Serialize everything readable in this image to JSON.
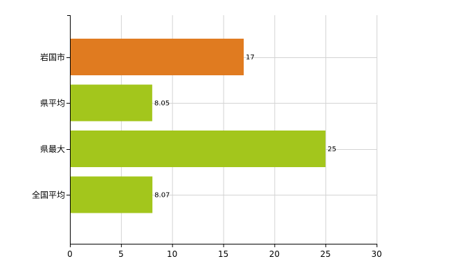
{
  "chart_data": {
    "type": "bar",
    "orientation": "horizontal",
    "categories": [
      "岩国市",
      "県平均",
      "県最大",
      "全国平均"
    ],
    "values": [
      17,
      8.05,
      25,
      8.07
    ],
    "value_labels": [
      "17",
      "8.05",
      "25",
      "8.07"
    ],
    "bar_colors": [
      "#E07B20",
      "#A3C61C",
      "#A3C61C",
      "#A3C61C"
    ],
    "xlim": [
      0,
      30
    ],
    "xticks": [
      0,
      5,
      10,
      15,
      20,
      25,
      30
    ],
    "xtick_labels": [
      "0",
      "5",
      "10",
      "15",
      "20",
      "25",
      "30"
    ],
    "grid": true,
    "legend": "none"
  }
}
